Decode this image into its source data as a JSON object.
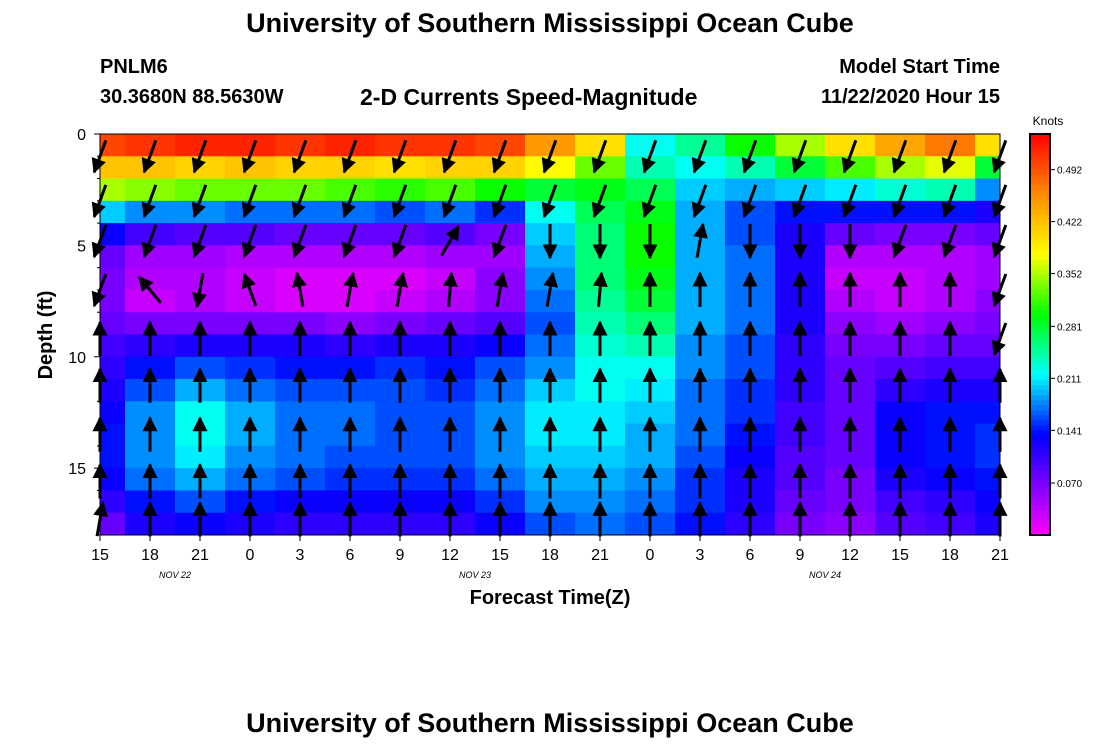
{
  "header": {
    "title": "University of Southern Mississippi Ocean Cube",
    "footer_title": "University of Southern Mississippi Ocean Cube",
    "station_id": "PNLM6",
    "station_coords": "30.3680N 88.5630W",
    "plot_title": "2-D Currents Speed-Magnitude",
    "model_start_label": "Model Start Time",
    "model_start_value": "11/22/2020 Hour 15"
  },
  "chart_data": {
    "type": "heatmap",
    "title": "2-D Currents Speed-Magnitude",
    "xlabel": "Forecast Time(Z)",
    "ylabel": "Depth (ft)",
    "x_ticks": [
      "15",
      "18",
      "21",
      "0",
      "3",
      "6",
      "9",
      "12",
      "15",
      "18",
      "21",
      "0",
      "3",
      "6",
      "9",
      "12",
      "15",
      "18",
      "21"
    ],
    "date_labels": [
      {
        "label": "NOV 22",
        "after_tick": 1
      },
      {
        "label": "NOV 23",
        "after_tick": 7
      },
      {
        "label": "NOV 24",
        "after_tick": 14
      }
    ],
    "forecast_hours_range": [
      0,
      54
    ],
    "depth_range_ft": [
      0,
      18
    ],
    "y_ticks": [
      0,
      5,
      10,
      15
    ],
    "colorbar": {
      "unit_label": "Knots",
      "range": [
        0,
        0.54
      ],
      "tick_values": [
        "0.492",
        "0.422",
        "0.352",
        "0.281",
        "0.211",
        "0.141",
        "0.070"
      ]
    },
    "depth_rows_ft": [
      0.5,
      1.5,
      2.5,
      3.5,
      4.5,
      5.5,
      6.5,
      7.5,
      8.5,
      9.5,
      10.5,
      11.5,
      12.5,
      13.5,
      14.5,
      15.5,
      16.5,
      17.5
    ],
    "speed_columns": [
      {
        "hour": 0,
        "speeds": [
          0.5,
          0.42,
          0.35,
          0.2,
          0.13,
          0.08,
          0.07,
          0.07,
          0.08,
          0.1,
          0.11,
          0.12,
          0.13,
          0.14,
          0.14,
          0.13,
          0.11,
          0.08
        ]
      },
      {
        "hour": 3,
        "speeds": [
          0.51,
          0.42,
          0.34,
          0.18,
          0.1,
          0.05,
          0.04,
          0.03,
          0.07,
          0.11,
          0.14,
          0.16,
          0.18,
          0.18,
          0.18,
          0.17,
          0.14,
          0.12
        ]
      },
      {
        "hour": 6,
        "speeds": [
          0.52,
          0.41,
          0.33,
          0.18,
          0.09,
          0.05,
          0.04,
          0.04,
          0.07,
          0.12,
          0.16,
          0.19,
          0.22,
          0.22,
          0.21,
          0.19,
          0.16,
          0.13
        ]
      },
      {
        "hour": 9,
        "speeds": [
          0.52,
          0.42,
          0.33,
          0.17,
          0.09,
          0.04,
          0.03,
          0.03,
          0.07,
          0.12,
          0.15,
          0.17,
          0.19,
          0.19,
          0.18,
          0.17,
          0.14,
          0.12
        ]
      },
      {
        "hour": 12,
        "speeds": [
          0.51,
          0.41,
          0.33,
          0.17,
          0.08,
          0.04,
          0.02,
          0.02,
          0.07,
          0.12,
          0.14,
          0.16,
          0.17,
          0.17,
          0.17,
          0.16,
          0.13,
          0.11
        ]
      },
      {
        "hour": 15,
        "speeds": [
          0.52,
          0.41,
          0.32,
          0.17,
          0.08,
          0.04,
          0.02,
          0.02,
          0.06,
          0.11,
          0.14,
          0.16,
          0.17,
          0.17,
          0.16,
          0.15,
          0.13,
          0.11
        ]
      },
      {
        "hour": 18,
        "speeds": [
          0.51,
          0.4,
          0.31,
          0.16,
          0.08,
          0.04,
          0.02,
          0.03,
          0.07,
          0.12,
          0.15,
          0.16,
          0.16,
          0.16,
          0.16,
          0.15,
          0.13,
          0.11
        ]
      },
      {
        "hour": 21,
        "speeds": [
          0.51,
          0.41,
          0.32,
          0.17,
          0.09,
          0.05,
          0.03,
          0.04,
          0.08,
          0.12,
          0.14,
          0.15,
          0.16,
          0.16,
          0.16,
          0.15,
          0.13,
          0.11
        ]
      },
      {
        "hour": 24,
        "speeds": [
          0.5,
          0.41,
          0.3,
          0.15,
          0.07,
          0.05,
          0.06,
          0.06,
          0.09,
          0.13,
          0.16,
          0.17,
          0.18,
          0.18,
          0.18,
          0.17,
          0.15,
          0.13
        ]
      },
      {
        "hour": 27,
        "speeds": [
          0.45,
          0.38,
          0.28,
          0.22,
          0.2,
          0.19,
          0.18,
          0.17,
          0.16,
          0.17,
          0.18,
          0.2,
          0.21,
          0.21,
          0.2,
          0.19,
          0.18,
          0.16
        ]
      },
      {
        "hour": 30,
        "speeds": [
          0.4,
          0.33,
          0.29,
          0.27,
          0.26,
          0.26,
          0.26,
          0.25,
          0.24,
          0.23,
          0.22,
          0.22,
          0.21,
          0.21,
          0.2,
          0.19,
          0.18,
          0.17
        ]
      },
      {
        "hour": 33,
        "speeds": [
          0.22,
          0.24,
          0.27,
          0.29,
          0.3,
          0.3,
          0.29,
          0.28,
          0.26,
          0.24,
          0.22,
          0.21,
          0.2,
          0.19,
          0.19,
          0.18,
          0.17,
          0.16
        ]
      },
      {
        "hour": 36,
        "speeds": [
          0.25,
          0.22,
          0.2,
          0.19,
          0.19,
          0.19,
          0.19,
          0.19,
          0.19,
          0.18,
          0.18,
          0.17,
          0.17,
          0.17,
          0.16,
          0.15,
          0.15,
          0.14
        ]
      },
      {
        "hour": 39,
        "speeds": [
          0.3,
          0.24,
          0.19,
          0.16,
          0.16,
          0.17,
          0.17,
          0.17,
          0.17,
          0.16,
          0.16,
          0.15,
          0.15,
          0.14,
          0.13,
          0.12,
          0.12,
          0.11
        ]
      },
      {
        "hour": 42,
        "speeds": [
          0.35,
          0.28,
          0.2,
          0.14,
          0.12,
          0.12,
          0.12,
          0.12,
          0.12,
          0.11,
          0.11,
          0.11,
          0.1,
          0.1,
          0.09,
          0.09,
          0.08,
          0.07
        ]
      },
      {
        "hour": 45,
        "speeds": [
          0.4,
          0.32,
          0.21,
          0.14,
          0.08,
          0.04,
          0.03,
          0.04,
          0.06,
          0.07,
          0.08,
          0.08,
          0.08,
          0.08,
          0.08,
          0.07,
          0.07,
          0.06
        ]
      },
      {
        "hour": 48,
        "speeds": [
          0.44,
          0.35,
          0.23,
          0.14,
          0.07,
          0.04,
          0.03,
          0.03,
          0.05,
          0.07,
          0.09,
          0.11,
          0.13,
          0.13,
          0.13,
          0.12,
          0.1,
          0.09
        ]
      },
      {
        "hour": 51,
        "speeds": [
          0.47,
          0.37,
          0.24,
          0.14,
          0.07,
          0.04,
          0.04,
          0.04,
          0.06,
          0.08,
          0.1,
          0.12,
          0.14,
          0.14,
          0.14,
          0.13,
          0.11,
          0.1
        ]
      },
      {
        "hour": 54,
        "speeds": [
          0.4,
          0.28,
          0.18,
          0.12,
          0.08,
          0.05,
          0.05,
          0.06,
          0.07,
          0.08,
          0.1,
          0.12,
          0.14,
          0.15,
          0.15,
          0.14,
          0.13,
          0.12
        ]
      }
    ],
    "vector_depths_ft": [
      1,
      3,
      4.8,
      7,
      9.2,
      11.3,
      13.5,
      15.6,
      17.3
    ],
    "vector_columns": [
      {
        "hour": 0,
        "directions_deg": [
          200,
          200,
          200,
          200,
          0,
          0,
          0,
          0,
          10
        ]
      },
      {
        "hour": 3,
        "directions_deg": [
          200,
          200,
          200,
          320,
          0,
          0,
          0,
          0,
          0
        ]
      },
      {
        "hour": 6,
        "directions_deg": [
          200,
          200,
          200,
          190,
          0,
          0,
          0,
          0,
          0
        ]
      },
      {
        "hour": 9,
        "directions_deg": [
          200,
          200,
          200,
          340,
          0,
          0,
          0,
          0,
          0
        ]
      },
      {
        "hour": 12,
        "directions_deg": [
          200,
          200,
          200,
          350,
          0,
          0,
          0,
          0,
          0
        ]
      },
      {
        "hour": 15,
        "directions_deg": [
          200,
          200,
          200,
          10,
          0,
          0,
          0,
          0,
          0
        ]
      },
      {
        "hour": 18,
        "directions_deg": [
          200,
          200,
          200,
          10,
          0,
          0,
          0,
          0,
          0
        ]
      },
      {
        "hour": 21,
        "directions_deg": [
          200,
          200,
          30,
          5,
          0,
          0,
          0,
          0,
          0
        ]
      },
      {
        "hour": 24,
        "directions_deg": [
          200,
          200,
          200,
          10,
          0,
          0,
          0,
          0,
          0
        ]
      },
      {
        "hour": 27,
        "directions_deg": [
          200,
          200,
          180,
          10,
          0,
          0,
          0,
          0,
          0
        ]
      },
      {
        "hour": 30,
        "directions_deg": [
          200,
          200,
          180,
          5,
          0,
          0,
          0,
          0,
          0
        ]
      },
      {
        "hour": 33,
        "directions_deg": [
          200,
          200,
          180,
          0,
          0,
          0,
          0,
          0,
          0
        ]
      },
      {
        "hour": 36,
        "directions_deg": [
          200,
          200,
          10,
          0,
          0,
          0,
          0,
          0,
          0
        ]
      },
      {
        "hour": 39,
        "directions_deg": [
          200,
          200,
          180,
          0,
          0,
          0,
          0,
          0,
          0
        ]
      },
      {
        "hour": 42,
        "directions_deg": [
          200,
          200,
          180,
          0,
          0,
          0,
          0,
          0,
          0
        ]
      },
      {
        "hour": 45,
        "directions_deg": [
          200,
          200,
          180,
          0,
          0,
          0,
          0,
          0,
          0
        ]
      },
      {
        "hour": 48,
        "directions_deg": [
          200,
          200,
          200,
          0,
          0,
          0,
          0,
          0,
          0
        ]
      },
      {
        "hour": 51,
        "directions_deg": [
          200,
          200,
          200,
          0,
          0,
          0,
          0,
          0,
          0
        ]
      },
      {
        "hour": 54,
        "directions_deg": [
          200,
          200,
          200,
          200,
          200,
          0,
          0,
          0,
          0
        ]
      }
    ]
  }
}
